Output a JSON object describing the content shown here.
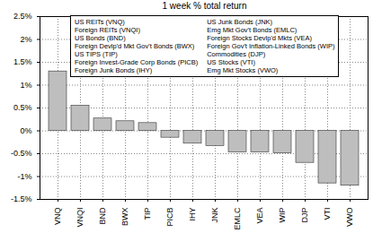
{
  "chart_data": {
    "type": "bar",
    "title": "1 week % total return",
    "categories": [
      "VNQ",
      "VNQI",
      "BND",
      "BWX",
      "TIP",
      "PICB",
      "IHY",
      "JNK",
      "EMLC",
      "VEA",
      "WIP",
      "DJP",
      "VTI",
      "VWO"
    ],
    "labels": [
      "US REITs (VNQ)",
      "Foreign REITs (VNQI)",
      "US Bonds (BND)",
      "Foreign Devlp'd Mkt Gov't Bonds (BWX)",
      "US TIPS (TIP)",
      "Foreign Invest-Grade Corp Bonds (PICB)",
      "Foreign Junk Bonds (IHY)",
      "US Junk Bonds (JNK)",
      "Emg Mkt Gov't Bonds (EMLC)",
      "Foreign Stocks Devlp'd Mkts (VEA)",
      "Foreign Gov't Inflation-Linked Bonds (WIP)",
      "Commodities (DJP)",
      "US Stocks (VTI)",
      "Emg Mkt Stocks (VWO)"
    ],
    "values": [
      1.3,
      0.55,
      0.27,
      0.21,
      0.17,
      -0.15,
      -0.28,
      -0.33,
      -0.47,
      -0.47,
      -0.49,
      -0.7,
      -1.15,
      -1.2
    ],
    "color": "#bebebe",
    "ylim": [
      -1.5,
      2.5
    ],
    "yticks": [
      {
        "value": -1.5,
        "label": "-1.5%"
      },
      {
        "value": -1,
        "label": "-1%"
      },
      {
        "value": -0.5,
        "label": "-0.5%"
      },
      {
        "value": 0,
        "label": "0%"
      },
      {
        "value": 0.5,
        "label": "0.5%"
      },
      {
        "value": 1,
        "label": "1%"
      },
      {
        "value": 1.5,
        "label": "1.5%"
      },
      {
        "value": 2,
        "label": "2%"
      },
      {
        "value": 2.5,
        "label": "2.5%"
      }
    ],
    "grid": true,
    "legend": "top"
  }
}
